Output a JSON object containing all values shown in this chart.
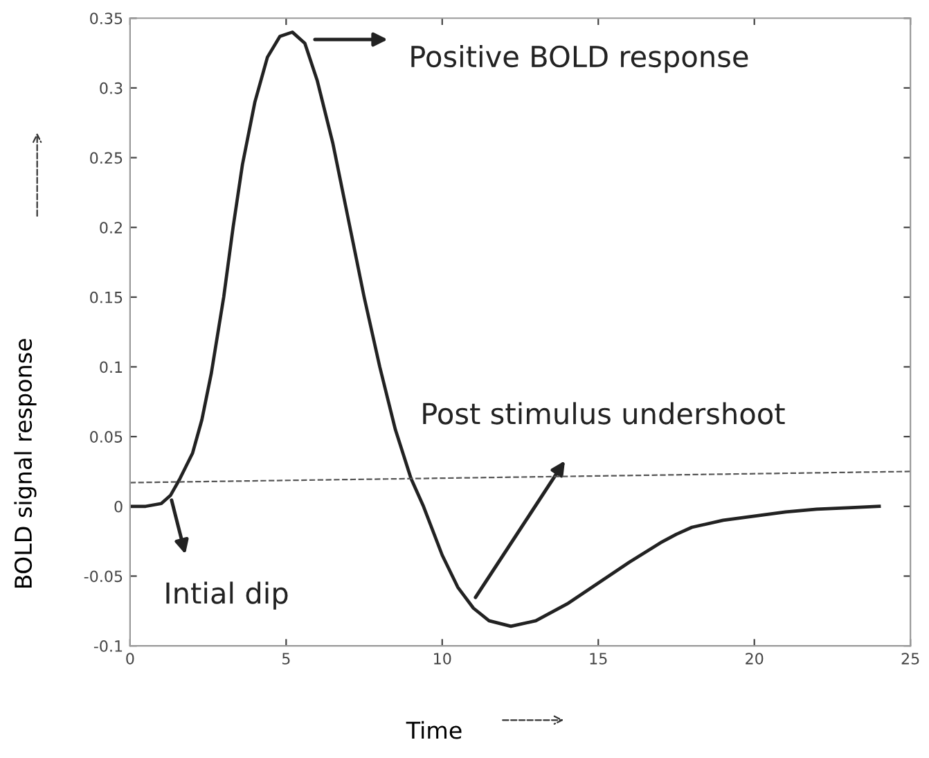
{
  "chart_data": {
    "type": "line",
    "xlabel": "Time",
    "ylabel": "BOLD signal response",
    "xlim": [
      0,
      25
    ],
    "ylim": [
      -0.1,
      0.35
    ],
    "xticks": [
      0,
      5,
      10,
      15,
      20,
      25
    ],
    "yticks": [
      -0.1,
      -0.05,
      0,
      0.05,
      0.1,
      0.15,
      0.2,
      0.25,
      0.3,
      0.35
    ],
    "grid": false,
    "marker": "none",
    "series": [
      {
        "color": "#222222",
        "line_style": "solid",
        "x": [
          0,
          0.5,
          1,
          1.3,
          1.6,
          2,
          2.3,
          2.6,
          3,
          3.3,
          3.6,
          4,
          4.4,
          4.8,
          5.2,
          5.6,
          6,
          6.5,
          7,
          7.5,
          8,
          8.5,
          9,
          9.4,
          10,
          10.5,
          11,
          11.5,
          12.2,
          13,
          14,
          15,
          16,
          17,
          17.5,
          18,
          19,
          20,
          21,
          22,
          23,
          24
        ],
        "values": [
          0,
          0,
          0.002,
          0.008,
          0.02,
          0.038,
          0.062,
          0.095,
          0.15,
          0.2,
          0.245,
          0.29,
          0.322,
          0.337,
          0.34,
          0.332,
          0.305,
          0.26,
          0.205,
          0.15,
          0.1,
          0.055,
          0.02,
          0,
          -0.035,
          -0.058,
          -0.073,
          -0.082,
          -0.086,
          -0.082,
          -0.07,
          -0.055,
          -0.04,
          -0.026,
          -0.02,
          -0.015,
          -0.01,
          -0.007,
          -0.004,
          -0.002,
          -0.001,
          0
        ]
      },
      {
        "color": "#555555",
        "line_style": "dashed",
        "x": [
          0,
          25
        ],
        "values": [
          0.017,
          0.025
        ]
      }
    ],
    "annotations": [
      "Positive BOLD response",
      "Intial dip",
      "Post stimulus undershoot"
    ]
  }
}
